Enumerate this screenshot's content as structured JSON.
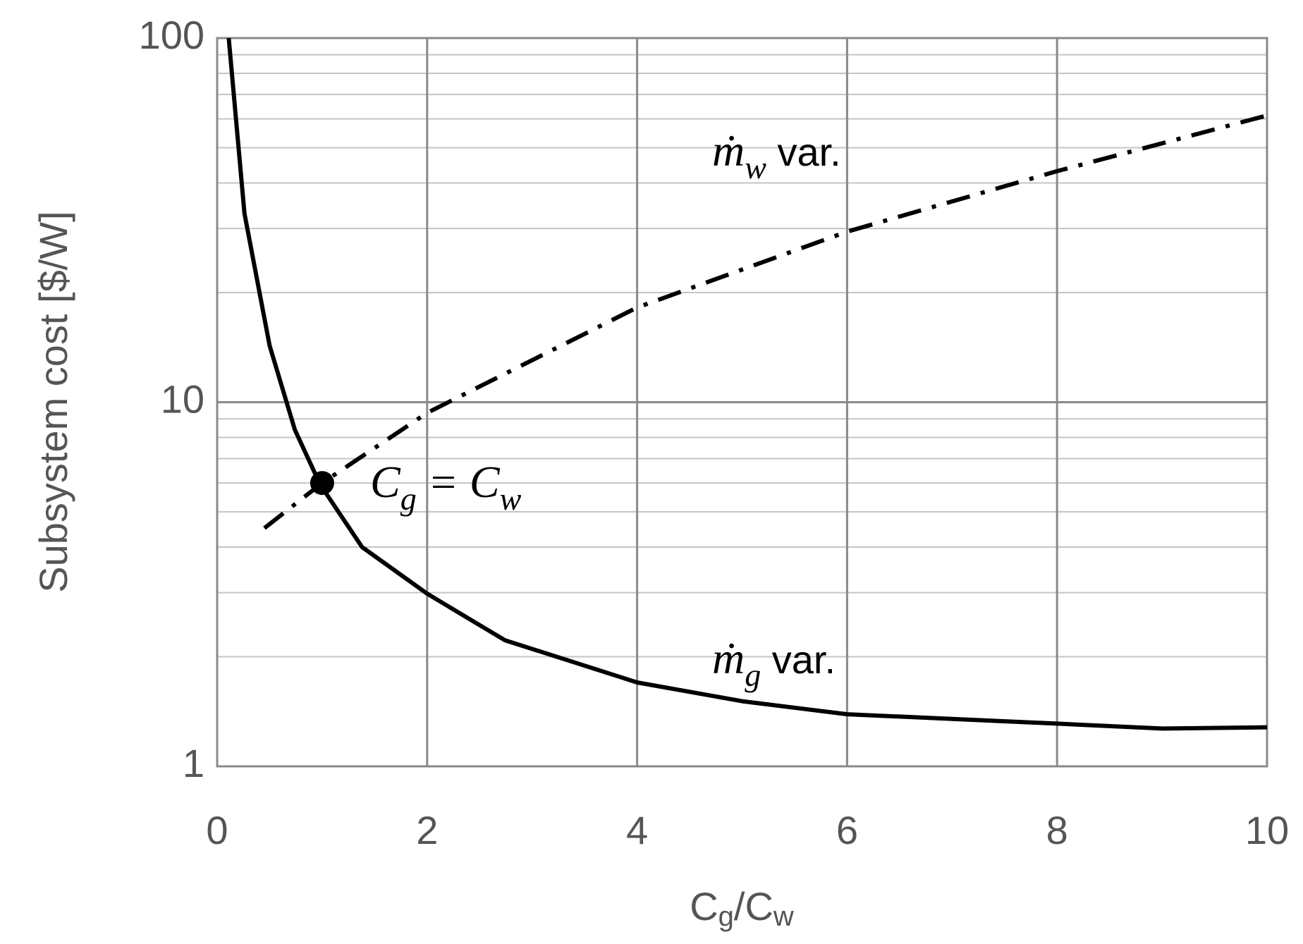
{
  "chart_data": {
    "type": "line",
    "y_label": "Subsystem cost [$/W]",
    "x_label_parts": [
      "C",
      "g",
      "/C",
      "w"
    ],
    "xlim": [
      0,
      10
    ],
    "xticks": [
      0,
      2,
      4,
      6,
      8,
      10
    ],
    "ylim": [
      1,
      100
    ],
    "yticks": [
      1,
      10,
      100
    ],
    "log_y": true,
    "grid": true,
    "minor_grid": true,
    "series": [
      {
        "color": "#000000",
        "dash": "solid",
        "x": [
          0.11,
          0.26,
          0.5,
          0.74,
          0.98,
          1.38,
          2,
          2.74,
          4,
          5,
          6,
          8,
          9,
          10
        ],
        "values": [
          100,
          33,
          14.3,
          8.4,
          5.95,
          4.0,
          2.98,
          2.22,
          1.7,
          1.51,
          1.39,
          1.31,
          1.27,
          1.28
        ]
      },
      {
        "color": "#000000",
        "dash": "dash-dot",
        "x": [
          0.45,
          1,
          2,
          4,
          6,
          8,
          10
        ],
        "values": [
          4.51,
          6.0,
          9.35,
          18.2,
          29.4,
          43.1,
          61.3
        ]
      }
    ],
    "point": {
      "x": 1,
      "y": 6,
      "color": "#000000"
    },
    "annotations": [
      {
        "parts": [
          "ṁ",
          "w",
          " var."
        ]
      },
      {
        "parts": [
          "ṁ",
          "g",
          " var."
        ]
      },
      {
        "parts": [
          "C",
          "g",
          " = C",
          "w"
        ]
      }
    ]
  }
}
